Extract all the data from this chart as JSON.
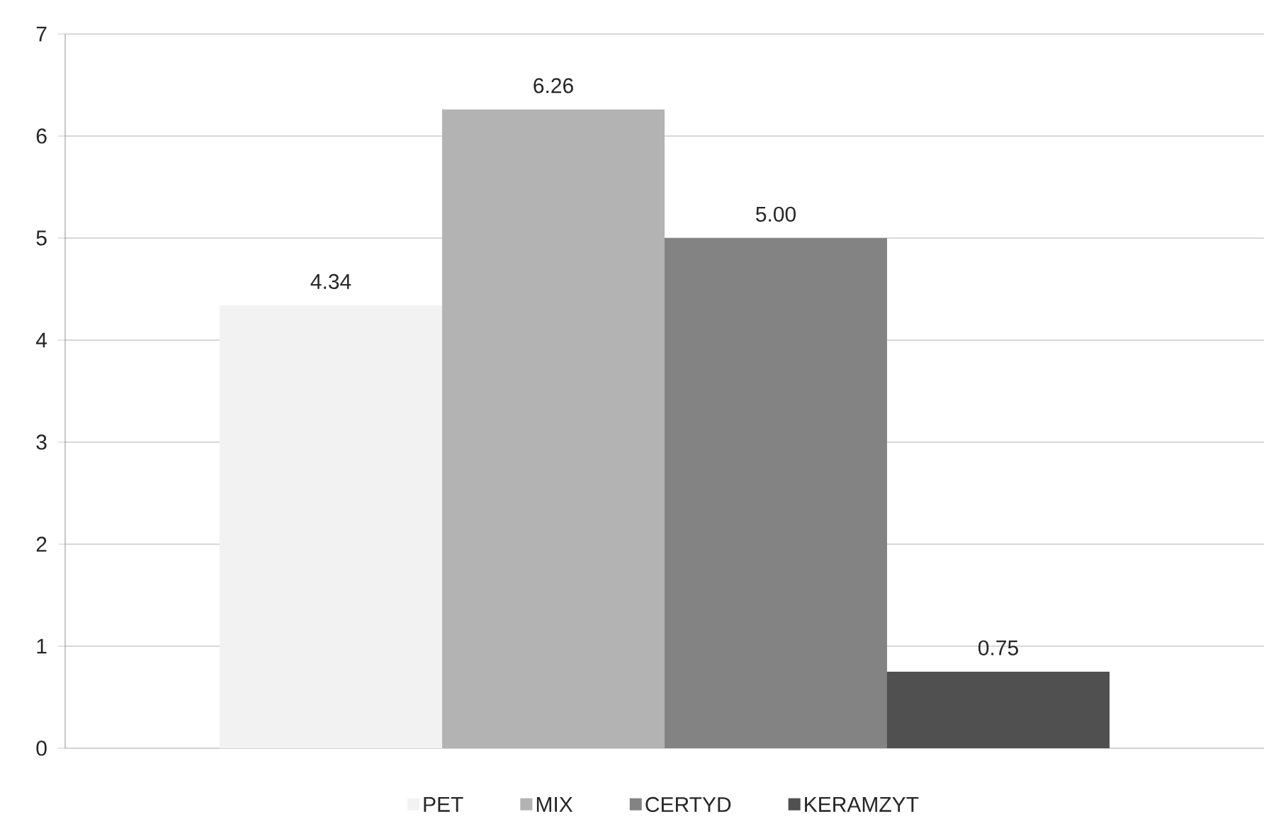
{
  "chart_data": {
    "type": "bar",
    "categories": [
      null
    ],
    "series": [
      {
        "name": "PET",
        "color": "#f2f2f2",
        "values": [
          4.34
        ],
        "value_labels": [
          "4.34"
        ]
      },
      {
        "name": "MIX",
        "color": "#b3b3b3",
        "values": [
          6.26
        ],
        "value_labels": [
          "6.26"
        ]
      },
      {
        "name": "CERTYD",
        "color": "#838383",
        "values": [
          5.0
        ],
        "value_labels": [
          "5.00"
        ]
      },
      {
        "name": "KERAMZYT",
        "color": "#505050",
        "values": [
          0.75
        ],
        "value_labels": [
          "0.75"
        ]
      }
    ],
    "ylim": [
      0,
      7
    ],
    "yticks": [
      0,
      1,
      2,
      3,
      4,
      5,
      6,
      7
    ],
    "grid": "y",
    "legend": "bottom"
  }
}
